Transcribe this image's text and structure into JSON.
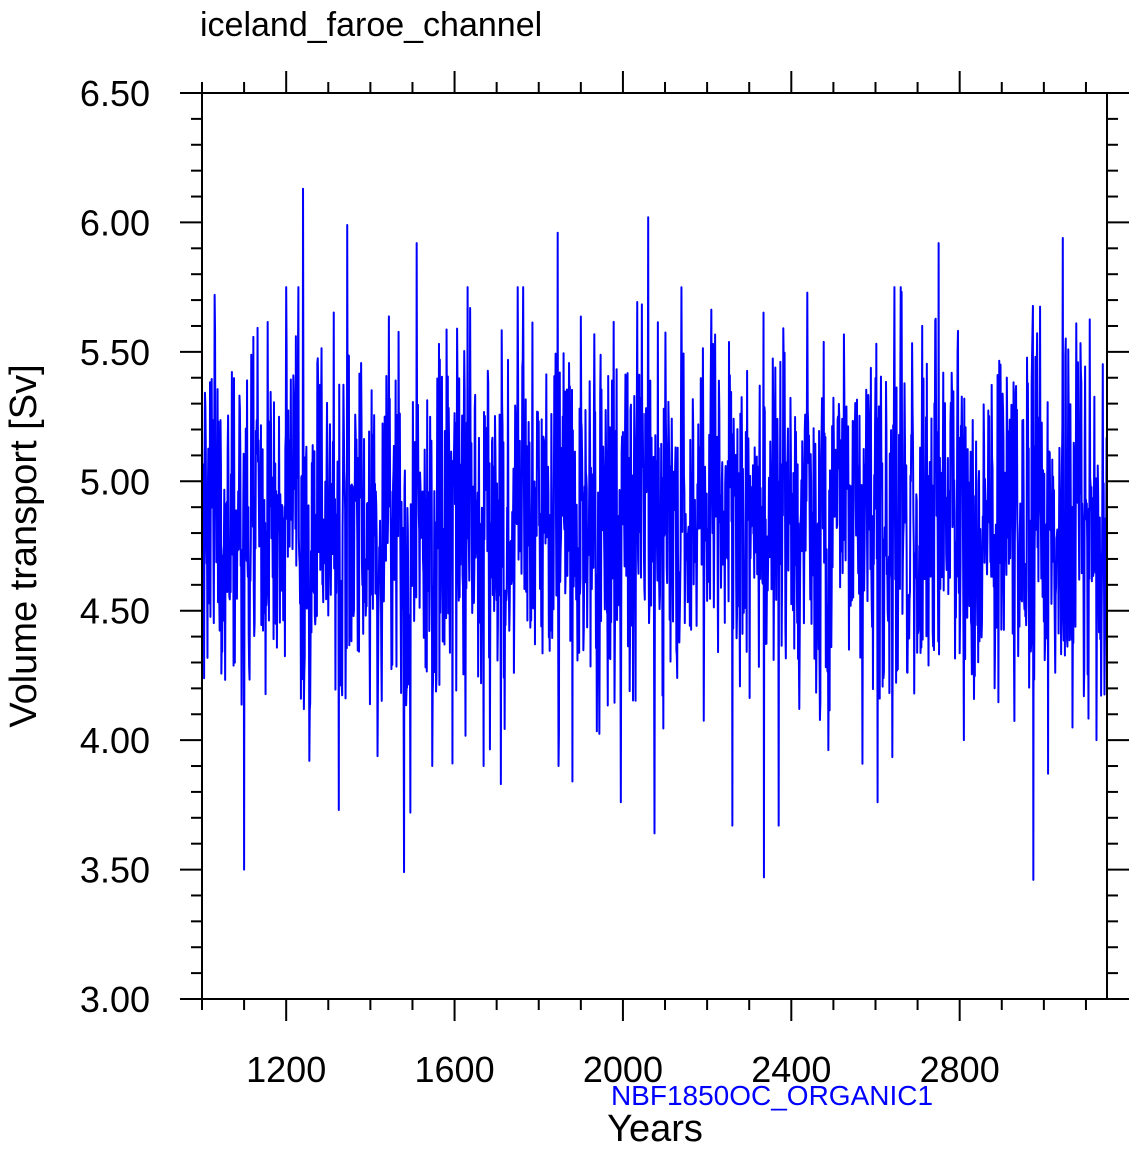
{
  "chart_data": {
    "type": "line",
    "title": "iceland_faroe_channel",
    "xlabel": "Years",
    "ylabel": "Volume transport [Sv]",
    "annotation": "NBF1850OC_ORGANIC1",
    "xlim": [
      1000,
      3150
    ],
    "ylim": [
      3.0,
      6.5
    ],
    "x_ticks": [
      1200,
      1600,
      2000,
      2400,
      2800
    ],
    "x_tick_labels": [
      "1200",
      "1600",
      "2000",
      "2400",
      "2800"
    ],
    "y_ticks": [
      3.0,
      3.5,
      4.0,
      4.5,
      5.0,
      5.5,
      6.0,
      6.5
    ],
    "y_tick_labels": [
      "3.00",
      "3.50",
      "4.00",
      "4.50",
      "5.00",
      "5.50",
      "6.00",
      "6.50"
    ],
    "series": [
      {
        "color": "#0000ff",
        "x_start": 1000,
        "x_end": 3150,
        "mean": 4.85,
        "std": 0.35,
        "extremes": [
          {
            "x": 1030,
            "y": 5.72
          },
          {
            "x": 1100,
            "y": 3.5
          },
          {
            "x": 1240,
            "y": 6.13
          },
          {
            "x": 1255,
            "y": 3.92
          },
          {
            "x": 1325,
            "y": 3.73
          },
          {
            "x": 1345,
            "y": 5.99
          },
          {
            "x": 1480,
            "y": 3.49
          },
          {
            "x": 1495,
            "y": 3.72
          },
          {
            "x": 1510,
            "y": 5.92
          },
          {
            "x": 1595,
            "y": 3.91
          },
          {
            "x": 1710,
            "y": 3.83
          },
          {
            "x": 1845,
            "y": 5.96
          },
          {
            "x": 1880,
            "y": 3.84
          },
          {
            "x": 1995,
            "y": 3.76
          },
          {
            "x": 2060,
            "y": 6.02
          },
          {
            "x": 2075,
            "y": 3.64
          },
          {
            "x": 2260,
            "y": 3.67
          },
          {
            "x": 2335,
            "y": 3.47
          },
          {
            "x": 2370,
            "y": 3.67
          },
          {
            "x": 2605,
            "y": 3.76
          },
          {
            "x": 2750,
            "y": 5.92
          },
          {
            "x": 2810,
            "y": 4.0
          },
          {
            "x": 2975,
            "y": 3.46
          },
          {
            "x": 3010,
            "y": 3.87
          },
          {
            "x": 3045,
            "y": 5.94
          },
          {
            "x": 3125,
            "y": 4.0
          }
        ]
      }
    ]
  }
}
